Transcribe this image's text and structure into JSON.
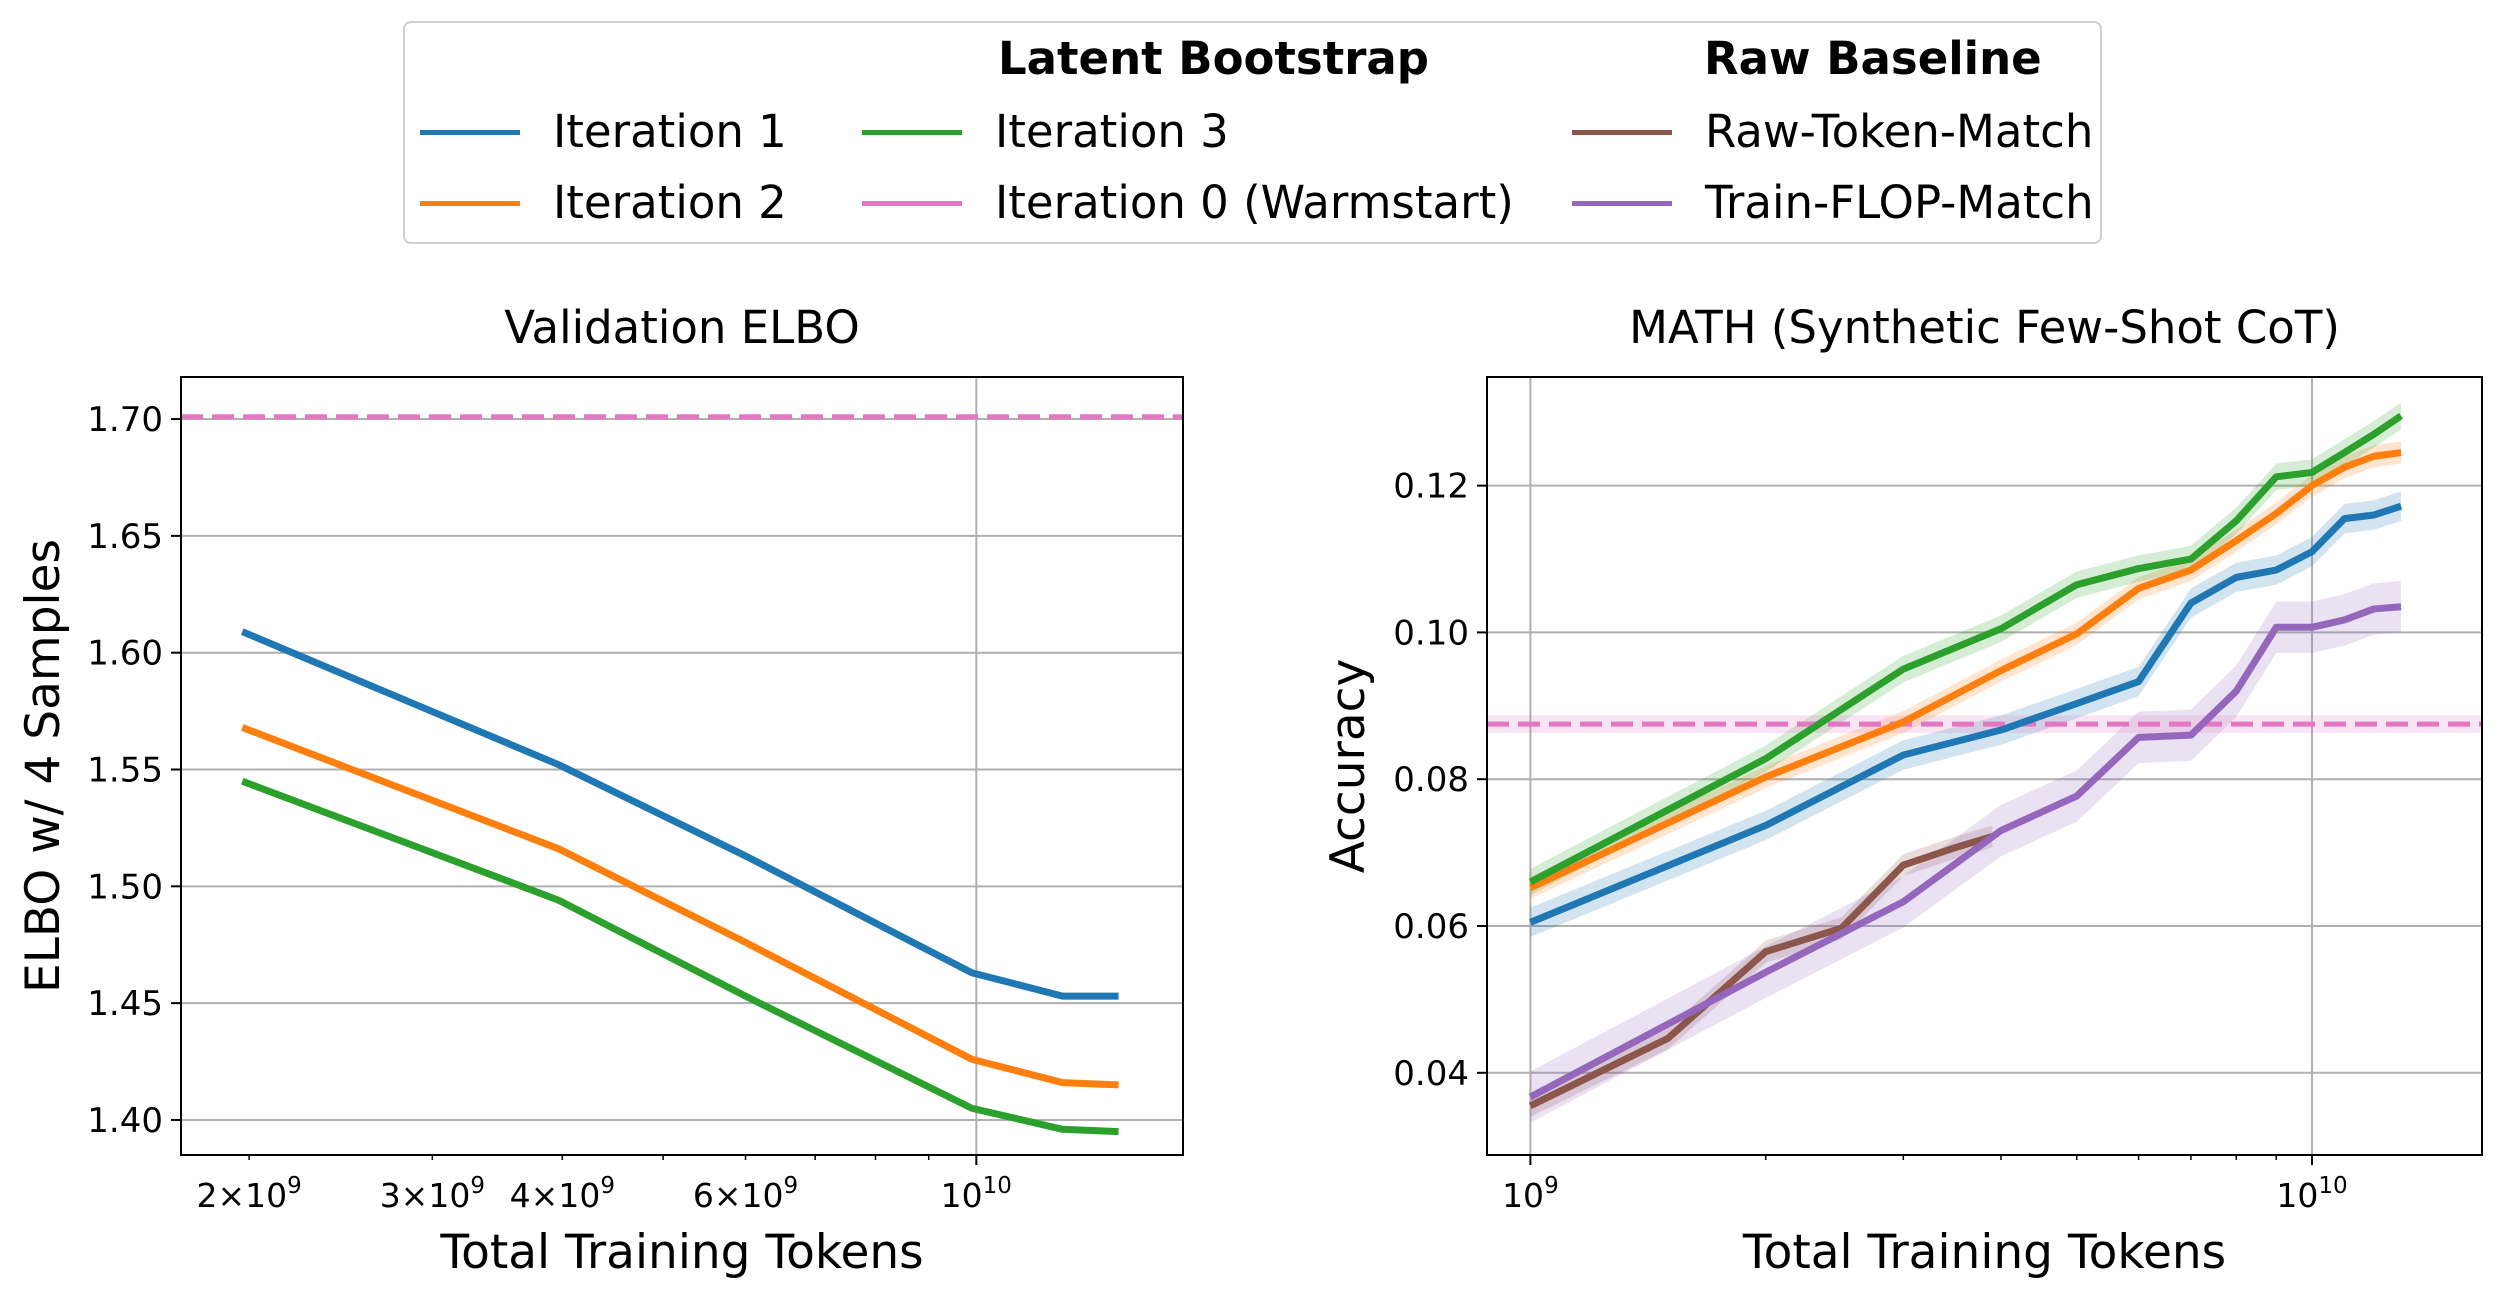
{
  "legend": {
    "header_latent": "Latent Bootstrap",
    "header_raw": "Raw Baseline",
    "items": [
      {
        "label": "Iteration 1",
        "color": "#1f77b4"
      },
      {
        "label": "Iteration 2",
        "color": "#ff7f0e"
      },
      {
        "label": "Iteration 3",
        "color": "#2ca02c"
      },
      {
        "label": "Iteration 0 (Warmstart)",
        "color": "#e377c2"
      },
      {
        "label": "Raw-Token-Match",
        "color": "#8c564b"
      },
      {
        "label": "Train-FLOP-Match",
        "color": "#9467bd"
      }
    ]
  },
  "chart_data": [
    {
      "type": "line",
      "title": "Validation ELBO",
      "xlabel": "Total Training Tokens",
      "ylabel": "ELBO w/ 4 Samples",
      "xscale": "log",
      "xlim": [
        1720000000.0,
        15800000000.0
      ],
      "ylim": [
        1.385,
        1.718
      ],
      "x_ticklabels": [
        "2 × 10⁹",
        "3 × 10⁹",
        "4 × 10⁹",
        "6 × 10⁹",
        "10¹⁰"
      ],
      "y_ticklabels": [
        "1.40",
        "1.45",
        "1.50",
        "1.55",
        "1.60",
        "1.65",
        "1.70"
      ],
      "grid": true,
      "series": [
        {
          "name": "Iteration 1",
          "color": "#1f77b4",
          "x": [
            1970000000.0,
            3970000000.0,
            6000000000.0,
            9900000000.0,
            12100000000.0,
            13700000000.0
          ],
          "y": [
            1.609,
            1.552,
            1.513,
            1.463,
            1.453,
            1.453
          ]
        },
        {
          "name": "Iteration 2",
          "color": "#ff7f0e",
          "x": [
            1970000000.0,
            3970000000.0,
            6000000000.0,
            9900000000.0,
            12100000000.0,
            13700000000.0
          ],
          "y": [
            1.568,
            1.516,
            1.476,
            1.426,
            1.416,
            1.415
          ]
        },
        {
          "name": "Iteration 3",
          "color": "#2ca02c",
          "x": [
            1970000000.0,
            3970000000.0,
            6000000000.0,
            9900000000.0,
            12100000000.0,
            13700000000.0
          ],
          "y": [
            1.545,
            1.494,
            1.453,
            1.405,
            1.396,
            1.395
          ]
        }
      ],
      "hlines": [
        {
          "name": "Iteration 0 (Warmstart)",
          "y": 1.701,
          "color": "#e377c2",
          "style": "dashed"
        }
      ]
    },
    {
      "type": "line",
      "title": "MATH (Synthetic Few-Shot CoT)",
      "xlabel": "Total Training Tokens",
      "ylabel": "Accuracy",
      "xscale": "log",
      "xlim": [
        880000000.0,
        16500000000.0
      ],
      "ylim": [
        0.0288,
        0.1348
      ],
      "x_ticklabels": [
        "10⁹",
        "10¹⁰"
      ],
      "y_ticklabels": [
        "0.04",
        "0.06",
        "0.08",
        "0.10",
        "0.12"
      ],
      "grid": true,
      "series": [
        {
          "name": "Iteration 1",
          "color": "#1f77b4",
          "x": [
            1000000000.0,
            2000000000.0,
            3000000000.0,
            4000000000.0,
            5000000000.0,
            6000000000.0,
            7000000000.0,
            8000000000.0,
            9000000000.0,
            10000000000.0,
            11000000000.0,
            12000000000.0,
            13000000000.0
          ],
          "y": [
            0.0605,
            0.0737,
            0.0833,
            0.0867,
            0.0903,
            0.0933,
            0.104,
            0.1075,
            0.1085,
            0.111,
            0.1155,
            0.116,
            0.1172
          ],
          "band": 0.002
        },
        {
          "name": "Iteration 2",
          "color": "#ff7f0e",
          "x": [
            1000000000.0,
            2000000000.0,
            3000000000.0,
            4000000000.0,
            5000000000.0,
            6000000000.0,
            7000000000.0,
            8000000000.0,
            9000000000.0,
            10000000000.0,
            11000000000.0,
            12000000000.0,
            13000000000.0
          ],
          "y": [
            0.0652,
            0.0803,
            0.0878,
            0.0948,
            0.0998,
            0.106,
            0.1085,
            0.1125,
            0.1162,
            0.12,
            0.1225,
            0.124,
            0.1245
          ],
          "band": 0.0015
        },
        {
          "name": "Iteration 3",
          "color": "#2ca02c",
          "x": [
            1000000000.0,
            2000000000.0,
            3000000000.0,
            4000000000.0,
            5000000000.0,
            6000000000.0,
            7000000000.0,
            8000000000.0,
            9000000000.0,
            10000000000.0,
            11000000000.0,
            12000000000.0,
            13000000000.0
          ],
          "y": [
            0.066,
            0.0828,
            0.095,
            0.1005,
            0.1065,
            0.1087,
            0.11,
            0.1152,
            0.1212,
            0.1218,
            0.1245,
            0.127,
            0.1295
          ],
          "band": 0.0018
        },
        {
          "name": "Raw-Token-Match",
          "color": "#8c564b",
          "x": [
            1000000000.0,
            1500000000.0,
            2000000000.0,
            2500000000.0,
            3000000000.0,
            3500000000.0,
            3900000000.0
          ],
          "y": [
            0.0355,
            0.0447,
            0.0565,
            0.0597,
            0.0683,
            0.0707,
            0.0722
          ],
          "band": 0.0015
        },
        {
          "name": "Train-FLOP-Match",
          "color": "#9467bd",
          "x": [
            1000000000.0,
            2000000000.0,
            3000000000.0,
            4000000000.0,
            5000000000.0,
            6000000000.0,
            7000000000.0,
            8000000000.0,
            9000000000.0,
            10000000000.0,
            11000000000.0,
            12000000000.0,
            13000000000.0
          ],
          "y": [
            0.0367,
            0.0537,
            0.0633,
            0.073,
            0.0777,
            0.0857,
            0.086,
            0.092,
            0.1007,
            0.1007,
            0.1017,
            0.1032,
            0.1035
          ],
          "band": 0.0035
        }
      ],
      "hlines": [
        {
          "name": "Iteration 0 (Warmstart)",
          "y": 0.0875,
          "color": "#e377c2",
          "style": "dashed",
          "band": 0.0012
        }
      ]
    }
  ]
}
